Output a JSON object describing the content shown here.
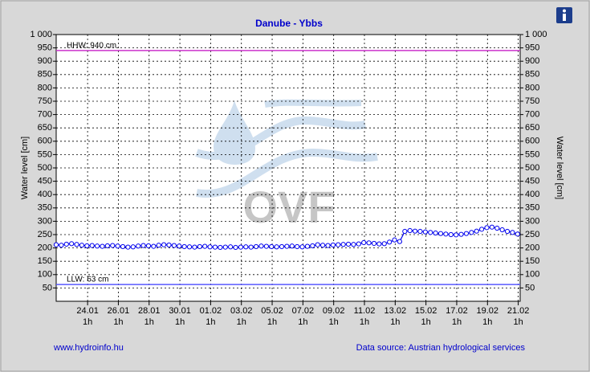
{
  "chart_data": {
    "type": "line",
    "title": "Danube - Ybbs",
    "y_label": "Water level [cm]",
    "y2_label": "Water level [cm]",
    "watermark": "OVF",
    "footer_left": "www.hydroinfo.hu",
    "footer_right": "Data source: Austrian hydrological services",
    "xlim": [
      0,
      724
    ],
    "xticks": [
      {
        "value": 49,
        "label": "24.01",
        "sublabel": "1h"
      },
      {
        "value": 97,
        "label": "26.01",
        "sublabel": "1h"
      },
      {
        "value": 145,
        "label": "28.01",
        "sublabel": "1h"
      },
      {
        "value": 193,
        "label": "30.01",
        "sublabel": "1h"
      },
      {
        "value": 241,
        "label": "01.02",
        "sublabel": "1h"
      },
      {
        "value": 289,
        "label": "03.02",
        "sublabel": "1h"
      },
      {
        "value": 337,
        "label": "05.02",
        "sublabel": "1h"
      },
      {
        "value": 385,
        "label": "07.02",
        "sublabel": "1h"
      },
      {
        "value": 433,
        "label": "09.02",
        "sublabel": "1h"
      },
      {
        "value": 481,
        "label": "11.02",
        "sublabel": "1h"
      },
      {
        "value": 529,
        "label": "13.02",
        "sublabel": "1h"
      },
      {
        "value": 577,
        "label": "15.02",
        "sublabel": "1h"
      },
      {
        "value": 625,
        "label": "17.02",
        "sublabel": "1h"
      },
      {
        "value": 673,
        "label": "19.02",
        "sublabel": "1h"
      },
      {
        "value": 721,
        "label": "21.02",
        "sublabel": "1h"
      }
    ],
    "ylim": [
      0,
      1000
    ],
    "y2lim": [
      0,
      1000
    ],
    "yticks": [
      50,
      100,
      150,
      200,
      250,
      300,
      350,
      400,
      450,
      500,
      550,
      600,
      650,
      700,
      750,
      800,
      850,
      900,
      950,
      {
        "value": 1000,
        "label": "1 000"
      }
    ],
    "y2ticks": [
      50,
      100,
      150,
      200,
      250,
      300,
      350,
      400,
      450,
      500,
      550,
      600,
      650,
      700,
      750,
      800,
      850,
      900,
      950,
      {
        "value": 1000,
        "label": "1 000"
      }
    ],
    "grid": true,
    "reference_lines": [
      {
        "value": 940,
        "label": "HHW: 940 cm",
        "color": "#cc33cc"
      },
      {
        "value": 63,
        "label": "LLW: 63 cm",
        "color": "#5a5aff"
      }
    ],
    "x": [
      0,
      8,
      16,
      24,
      32,
      40,
      48,
      56,
      64,
      72,
      80,
      88,
      96,
      104,
      112,
      120,
      128,
      136,
      144,
      152,
      160,
      168,
      176,
      184,
      192,
      200,
      208,
      216,
      224,
      232,
      240,
      248,
      256,
      264,
      272,
      280,
      288,
      296,
      304,
      312,
      320,
      328,
      336,
      344,
      352,
      360,
      368,
      376,
      384,
      392,
      400,
      408,
      416,
      424,
      432,
      440,
      448,
      456,
      464,
      472,
      480,
      488,
      496,
      504,
      512,
      520,
      528,
      536,
      544,
      552,
      560,
      568,
      576,
      584,
      592,
      600,
      608,
      616,
      624,
      632,
      640,
      648,
      656,
      664,
      672,
      680,
      688,
      696,
      704,
      712,
      720
    ],
    "series": [
      {
        "color": "#0000ee",
        "values": [
          212,
          210,
          214,
          216,
          213,
          210,
          208,
          209,
          207,
          206,
          208,
          209,
          207,
          205,
          203,
          204,
          207,
          209,
          208,
          206,
          210,
          212,
          211,
          209,
          207,
          205,
          204,
          203,
          205,
          206,
          204,
          203,
          202,
          203,
          204,
          202,
          203,
          204,
          203,
          205,
          207,
          206,
          205,
          204,
          205,
          206,
          207,
          205,
          204,
          206,
          208,
          212,
          210,
          209,
          211,
          212,
          213,
          214,
          213,
          215,
          220,
          219,
          217,
          215,
          216,
          222,
          230,
          224,
          262,
          265,
          263,
          262,
          260,
          258,
          256,
          254,
          252,
          250,
          249,
          251,
          254,
          258,
          263,
          270,
          276,
          278,
          274,
          268,
          262,
          258,
          252
        ]
      }
    ]
  }
}
